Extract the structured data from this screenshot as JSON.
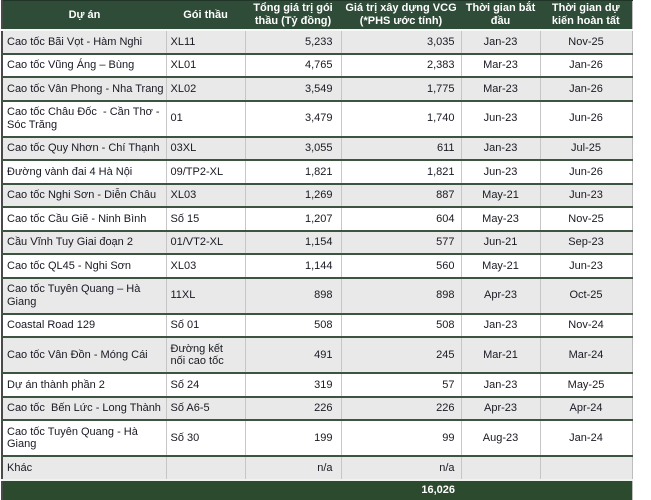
{
  "colors": {
    "header_bg": "#2e4c37",
    "header_text": "#ffffff",
    "total_bg": "#2c4a2e",
    "total_text": "#ffffff",
    "row_even_bg": "#e9e9e9",
    "row_odd_bg": "#ffffff",
    "row_divider": "#3d5540",
    "column_divider": "#c6c6c6",
    "body_text": "#191923",
    "outer_left_border": "#4a4a4a",
    "outer_right_border": "#bdbdbd"
  },
  "table": {
    "columns": [
      {
        "key": "project",
        "label": "Dự án",
        "align": "left"
      },
      {
        "key": "package",
        "label": "Gói thầu",
        "align": "left"
      },
      {
        "key": "total_value",
        "label": "Tổng giá trị gói\nthầu (Tỷ đồng)",
        "align": "right"
      },
      {
        "key": "vcg_value",
        "label": "Giá trị xây dựng VCG\n(*PHS ước tính)",
        "align": "right"
      },
      {
        "key": "start",
        "label": "Thời gian bắt\nđầu",
        "align": "center"
      },
      {
        "key": "end",
        "label": "Thời gian dự\nkiến hoàn tất",
        "align": "center"
      }
    ],
    "rows": [
      {
        "project": "Cao tốc Bãi Vọt - Hàm Nghi",
        "package": "XL11",
        "total_value": "5,233",
        "vcg_value": "3,035",
        "start": "Jan-23",
        "end": "Nov-25"
      },
      {
        "project": "Cao tốc Vũng Áng – Bùng",
        "package": "XL01",
        "total_value": "4,765",
        "vcg_value": "2,383",
        "start": "Mar-23",
        "end": "Jan-26"
      },
      {
        "project": "Cao tốc Vân Phong - Nha Trang",
        "package": "XL02",
        "total_value": "3,549",
        "vcg_value": "1,775",
        "start": "Mar-23",
        "end": "Jan-26"
      },
      {
        "project": "Cao tốc Châu Đốc  - Cần Thơ -\nSóc Trăng",
        "package": "01",
        "total_value": "3,479",
        "vcg_value": "1,740",
        "start": "Jun-23",
        "end": "Jun-26"
      },
      {
        "project": "Cao tốc Quy Nhơn - Chí Thạnh",
        "package": "03XL",
        "total_value": "3,055",
        "vcg_value": "611",
        "start": "Jan-23",
        "end": "Jul-25"
      },
      {
        "project": "Đường vành đai 4 Hà Nội",
        "package": "09/TP2-XL",
        "total_value": "1,821",
        "vcg_value": "1,821",
        "start": "Jun-23",
        "end": "Jun-26"
      },
      {
        "project": "Cao tốc Nghi Sơn - Diễn Châu",
        "package": "XL03",
        "total_value": "1,269",
        "vcg_value": "887",
        "start": "May-21",
        "end": "Jun-23"
      },
      {
        "project": "Cao tốc Cầu Giẽ - Ninh Bình",
        "package": "Số 15",
        "total_value": "1,207",
        "vcg_value": "604",
        "start": "May-23",
        "end": "Nov-25"
      },
      {
        "project": "Cầu Vĩnh Tuy Giai đoạn 2",
        "package": "01/VT2-XL",
        "total_value": "1,154",
        "vcg_value": "577",
        "start": "Jun-21",
        "end": "Sep-23"
      },
      {
        "project": "Cao tốc QL45 - Nghi Sơn",
        "package": "XL03",
        "total_value": "1,144",
        "vcg_value": "560",
        "start": "May-21",
        "end": "Jun-23"
      },
      {
        "project": "Cao tốc Tuyên Quang – Hà\nGiang",
        "package": "11XL",
        "total_value": "898",
        "vcg_value": "898",
        "start": "Apr-23",
        "end": "Oct-25"
      },
      {
        "project": "Coastal Road 129",
        "package": "Số 01",
        "total_value": "508",
        "vcg_value": "508",
        "start": "Jan-23",
        "end": "Nov-24"
      },
      {
        "project": "Cao tốc Vân Đồn - Móng Cái",
        "package": "Đường kết\nnối cao tốc",
        "total_value": "491",
        "vcg_value": "245",
        "start": "Mar-21",
        "end": "Mar-24"
      },
      {
        "project": "Dự án thành phần 2",
        "package": "Số 24",
        "total_value": "319",
        "vcg_value": "57",
        "start": "Jan-23",
        "end": "May-25"
      },
      {
        "project": "Cao tốc  Bến Lức - Long Thành",
        "package": "Số A6-5",
        "total_value": "226",
        "vcg_value": "226",
        "start": "Apr-23",
        "end": "Apr-24"
      },
      {
        "project": "Cao tốc Tuyên Quang - Hà\nGiang",
        "package": "Số 30",
        "total_value": "199",
        "vcg_value": "99",
        "start": "Aug-23",
        "end": "Jan-24"
      },
      {
        "project": "Khác",
        "package": "",
        "total_value": "n/a",
        "vcg_value": "n/a",
        "start": "",
        "end": ""
      }
    ],
    "total": {
      "vcg_total": "16,026"
    }
  }
}
